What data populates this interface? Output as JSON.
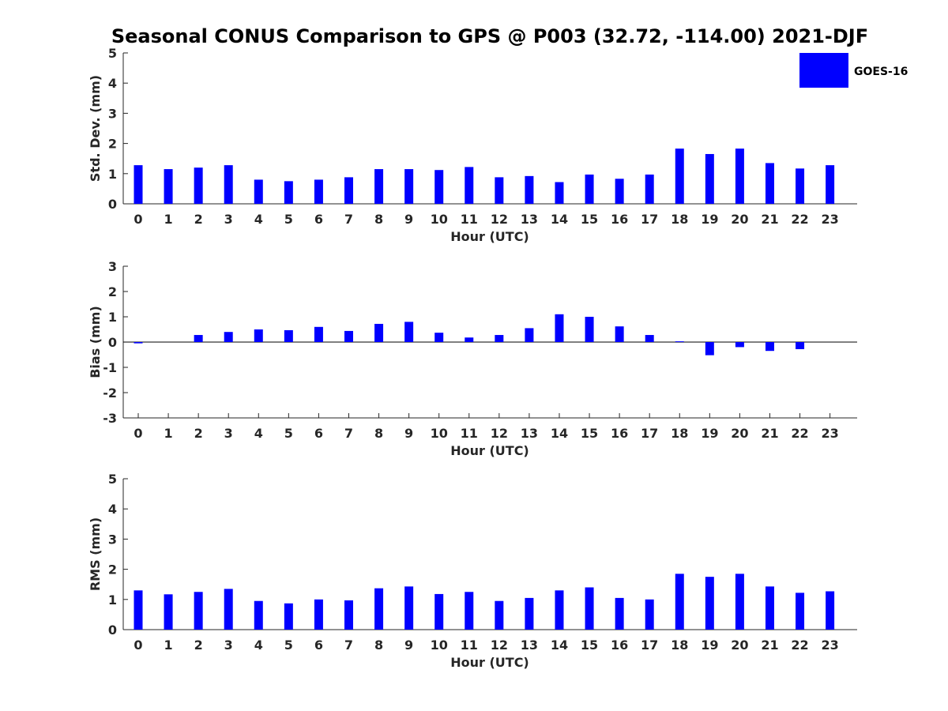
{
  "figure_title": "Seasonal CONUS Comparison to GPS @ P003 (32.72, -114.00) 2021-DJF",
  "legend": {
    "label": "GOES-16",
    "color": "#0000ff"
  },
  "chart_data": [
    {
      "type": "bar",
      "title": "Seasonal CONUS Comparison to GPS @ P003 (32.72, -114.00) 2021-DJF",
      "xlabel": "Hour (UTC)",
      "ylabel": "Std. Dev. (mm)",
      "ylim": [
        0,
        5
      ],
      "yticks": [
        "0",
        "1",
        "2",
        "3",
        "4",
        "5"
      ],
      "categories": [
        "0",
        "1",
        "2",
        "3",
        "4",
        "5",
        "6",
        "7",
        "8",
        "9",
        "10",
        "11",
        "12",
        "13",
        "14",
        "15",
        "16",
        "17",
        "18",
        "19",
        "20",
        "21",
        "22",
        "23"
      ],
      "series": [
        {
          "name": "GOES-16",
          "color": "#0000ff",
          "values": [
            1.28,
            1.15,
            1.2,
            1.28,
            0.8,
            0.75,
            0.8,
            0.88,
            1.15,
            1.15,
            1.12,
            1.22,
            0.88,
            0.92,
            0.72,
            0.97,
            0.83,
            0.97,
            1.83,
            1.65,
            1.83,
            1.35,
            1.17,
            1.28
          ]
        }
      ]
    },
    {
      "type": "bar",
      "xlabel": "Hour (UTC)",
      "ylabel": "Bias (mm)",
      "ylim": [
        -3,
        3
      ],
      "yticks": [
        "-3",
        "-2",
        "-1",
        "0",
        "1",
        "2",
        "3"
      ],
      "categories": [
        "0",
        "1",
        "2",
        "3",
        "4",
        "5",
        "6",
        "7",
        "8",
        "9",
        "10",
        "11",
        "12",
        "13",
        "14",
        "15",
        "16",
        "17",
        "18",
        "19",
        "20",
        "21",
        "22",
        "23"
      ],
      "series": [
        {
          "name": "GOES-16",
          "color": "#0000ff",
          "values": [
            -0.05,
            0,
            0.28,
            0.4,
            0.5,
            0.47,
            0.6,
            0.44,
            0.72,
            0.8,
            0.37,
            0.18,
            0.28,
            0.55,
            1.1,
            1.0,
            0.62,
            0.28,
            0.03,
            -0.52,
            -0.2,
            -0.35,
            -0.28,
            0
          ]
        }
      ]
    },
    {
      "type": "bar",
      "xlabel": "Hour (UTC)",
      "ylabel": "RMS (mm)",
      "ylim": [
        0,
        5
      ],
      "yticks": [
        "0",
        "1",
        "2",
        "3",
        "4",
        "5"
      ],
      "categories": [
        "0",
        "1",
        "2",
        "3",
        "4",
        "5",
        "6",
        "7",
        "8",
        "9",
        "10",
        "11",
        "12",
        "13",
        "14",
        "15",
        "16",
        "17",
        "18",
        "19",
        "20",
        "21",
        "22",
        "23"
      ],
      "series": [
        {
          "name": "GOES-16",
          "color": "#0000ff",
          "values": [
            1.3,
            1.17,
            1.25,
            1.35,
            0.95,
            0.87,
            1.0,
            0.97,
            1.37,
            1.43,
            1.18,
            1.25,
            0.95,
            1.05,
            1.3,
            1.4,
            1.05,
            1.0,
            1.85,
            1.75,
            1.85,
            1.43,
            1.22,
            1.27
          ]
        }
      ]
    }
  ]
}
